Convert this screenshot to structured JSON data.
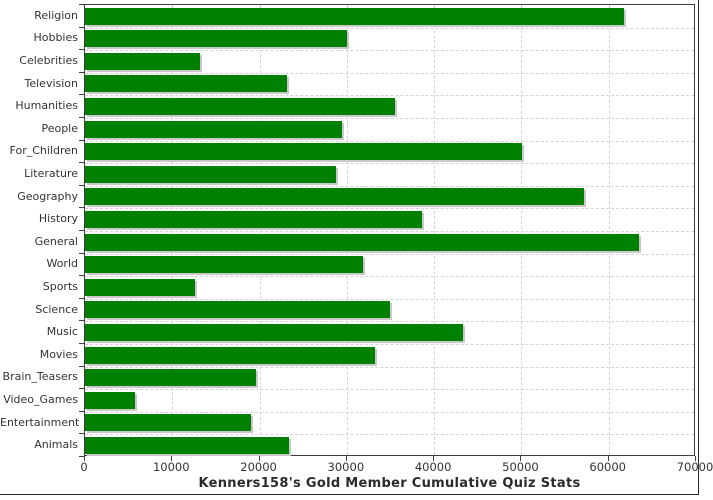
{
  "title": "Kenners158's Gold Member Cumulative Quiz Stats",
  "chart_data": {
    "type": "bar",
    "orientation": "horizontal",
    "title": "Kenners158's Gold Member Cumulative Quiz Stats",
    "xlabel": "",
    "ylabel": "",
    "xlim": [
      0,
      70000
    ],
    "x_ticks": [
      0,
      10000,
      20000,
      30000,
      40000,
      50000,
      60000,
      70000
    ],
    "grid": "dashed",
    "legend": "none",
    "bar_color": "#008000",
    "shadow_color": "#c9c9c9",
    "gridline_color": "#d4d4d4",
    "axis_color": "#3f3f3f",
    "text_color": "#333333",
    "categories": [
      "Religion",
      "Hobbies",
      "Celebrities",
      "Television",
      "Humanities",
      "People",
      "For_Children",
      "Literature",
      "Geography",
      "History",
      "General",
      "World",
      "Sports",
      "Science",
      "Music",
      "Movies",
      "Brain_Teasers",
      "Video_Games",
      "Entertainment",
      "Animals"
    ],
    "values": [
      62000,
      30100,
      13200,
      23200,
      35600,
      29500,
      50200,
      28900,
      57300,
      38700,
      63700,
      31900,
      12700,
      35100,
      43500,
      33300,
      19700,
      5800,
      19100,
      23500
    ]
  }
}
